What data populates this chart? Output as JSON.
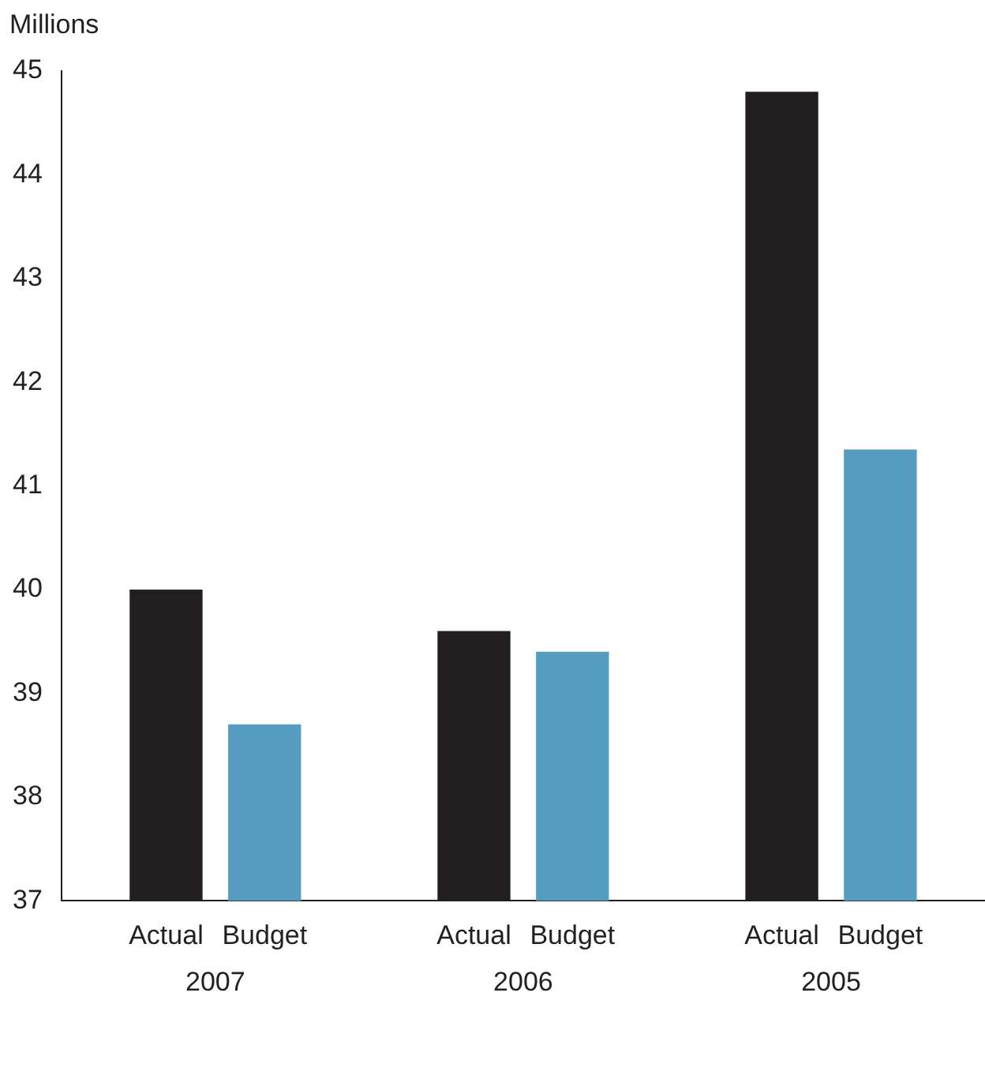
{
  "chart_data": {
    "type": "bar",
    "ylabel": "Millions",
    "categories": [
      "2007",
      "2006",
      "2005"
    ],
    "series": [
      {
        "name": "Actual",
        "color": "#231f20",
        "values": [
          40.0,
          39.6,
          44.8
        ]
      },
      {
        "name": "Budget",
        "color": "#559dc0",
        "values": [
          38.7,
          39.4,
          41.35
        ]
      }
    ],
    "ylim": [
      37,
      45
    ],
    "yticks": [
      37,
      38,
      39,
      40,
      41,
      42,
      43,
      44,
      45
    ],
    "grid": false,
    "legend": false
  }
}
